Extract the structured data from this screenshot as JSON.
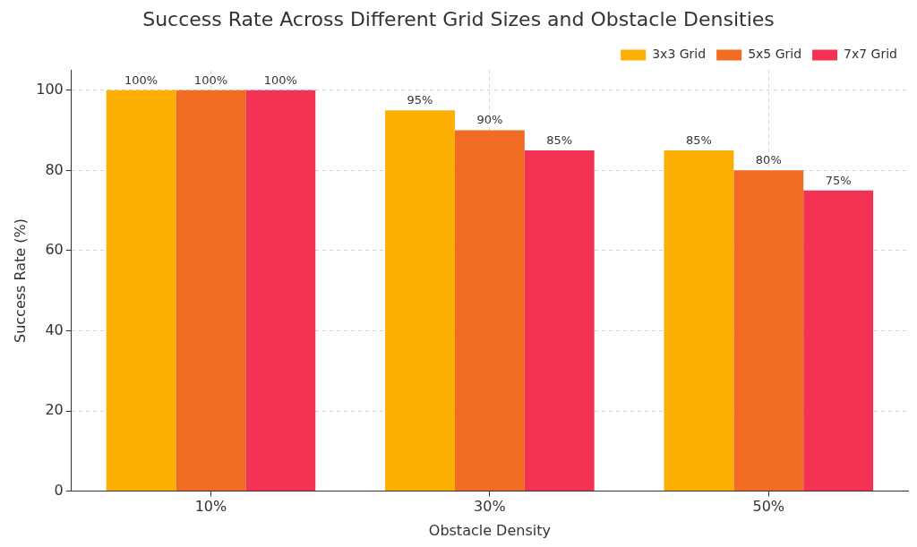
{
  "chart_data": {
    "type": "bar",
    "title": "Success Rate Across Different Grid Sizes and Obstacle Densities",
    "x_label": "Obstacle Density",
    "y_label": "Success Rate (%)",
    "categories": [
      "10%",
      "30%",
      "50%"
    ],
    "series": [
      {
        "name": "3x3 Grid",
        "color": "#fcae02",
        "values": [
          100,
          95,
          85
        ],
        "value_labels": [
          "100%",
          "95%",
          "85%"
        ]
      },
      {
        "name": "5x5 Grid",
        "color": "#f26b22",
        "values": [
          100,
          90,
          80
        ],
        "value_labels": [
          "100%",
          "90%",
          "80%"
        ]
      },
      {
        "name": "7x7 Grid",
        "color": "#f43354",
        "values": [
          100,
          85,
          75
        ],
        "value_labels": [
          "100%",
          "85%",
          "75%"
        ]
      }
    ],
    "ylim": [
      0,
      105
    ],
    "yticks": [
      0,
      20,
      40,
      60,
      80,
      100
    ],
    "grid": true,
    "legend": "upper right",
    "data_labels": true
  }
}
